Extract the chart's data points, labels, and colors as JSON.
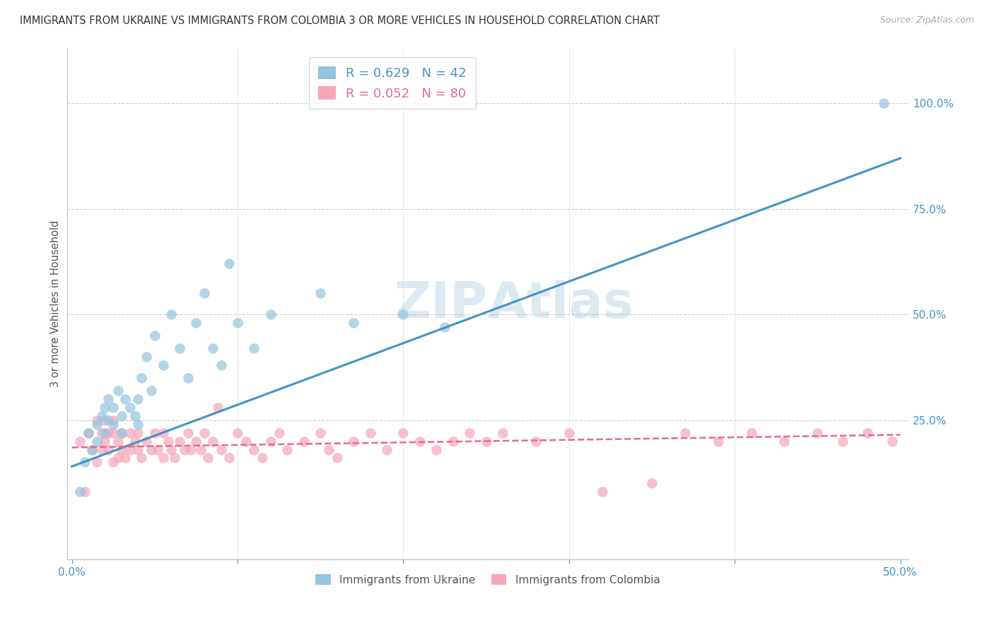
{
  "title": "IMMIGRANTS FROM UKRAINE VS IMMIGRANTS FROM COLOMBIA 3 OR MORE VEHICLES IN HOUSEHOLD CORRELATION CHART",
  "source": "Source: ZipAtlas.com",
  "ylabel": "3 or more Vehicles in Household",
  "ukraine_R": 0.629,
  "ukraine_N": 42,
  "colombia_R": 0.052,
  "colombia_N": 80,
  "ukraine_color": "#92c5de",
  "colombia_color": "#f4a6b8",
  "ukraine_line_color": "#4393c3",
  "colombia_line_color": "#e8698a",
  "xlim_min": -0.003,
  "xlim_max": 0.505,
  "ylim_min": -0.08,
  "ylim_max": 1.13,
  "ukraine_scatter_x": [
    0.005,
    0.008,
    0.01,
    0.012,
    0.015,
    0.015,
    0.018,
    0.02,
    0.02,
    0.022,
    0.022,
    0.025,
    0.025,
    0.028,
    0.03,
    0.03,
    0.032,
    0.035,
    0.038,
    0.04,
    0.04,
    0.042,
    0.045,
    0.048,
    0.05,
    0.055,
    0.06,
    0.065,
    0.07,
    0.075,
    0.08,
    0.085,
    0.09,
    0.095,
    0.1,
    0.11,
    0.12,
    0.15,
    0.17,
    0.2,
    0.225,
    0.49
  ],
  "ukraine_scatter_y": [
    0.08,
    0.15,
    0.22,
    0.18,
    0.2,
    0.24,
    0.26,
    0.22,
    0.28,
    0.25,
    0.3,
    0.24,
    0.28,
    0.32,
    0.22,
    0.26,
    0.3,
    0.28,
    0.26,
    0.24,
    0.3,
    0.35,
    0.4,
    0.32,
    0.45,
    0.38,
    0.5,
    0.42,
    0.35,
    0.48,
    0.55,
    0.42,
    0.38,
    0.62,
    0.48,
    0.42,
    0.5,
    0.55,
    0.48,
    0.5,
    0.47,
    1.0
  ],
  "colombia_scatter_x": [
    0.005,
    0.008,
    0.01,
    0.012,
    0.015,
    0.015,
    0.018,
    0.018,
    0.02,
    0.02,
    0.022,
    0.022,
    0.025,
    0.025,
    0.025,
    0.028,
    0.028,
    0.03,
    0.03,
    0.032,
    0.035,
    0.035,
    0.038,
    0.04,
    0.04,
    0.042,
    0.045,
    0.048,
    0.05,
    0.052,
    0.055,
    0.055,
    0.058,
    0.06,
    0.062,
    0.065,
    0.068,
    0.07,
    0.072,
    0.075,
    0.078,
    0.08,
    0.082,
    0.085,
    0.088,
    0.09,
    0.095,
    0.1,
    0.105,
    0.11,
    0.115,
    0.12,
    0.125,
    0.13,
    0.14,
    0.15,
    0.155,
    0.16,
    0.17,
    0.18,
    0.19,
    0.2,
    0.21,
    0.22,
    0.23,
    0.24,
    0.25,
    0.26,
    0.28,
    0.3,
    0.32,
    0.35,
    0.37,
    0.39,
    0.41,
    0.43,
    0.45,
    0.465,
    0.48,
    0.495
  ],
  "colombia_scatter_y": [
    0.2,
    0.08,
    0.22,
    0.18,
    0.25,
    0.15,
    0.22,
    0.18,
    0.25,
    0.2,
    0.22,
    0.18,
    0.25,
    0.22,
    0.15,
    0.2,
    0.16,
    0.22,
    0.18,
    0.16,
    0.22,
    0.18,
    0.2,
    0.22,
    0.18,
    0.16,
    0.2,
    0.18,
    0.22,
    0.18,
    0.22,
    0.16,
    0.2,
    0.18,
    0.16,
    0.2,
    0.18,
    0.22,
    0.18,
    0.2,
    0.18,
    0.22,
    0.16,
    0.2,
    0.28,
    0.18,
    0.16,
    0.22,
    0.2,
    0.18,
    0.16,
    0.2,
    0.22,
    0.18,
    0.2,
    0.22,
    0.18,
    0.16,
    0.2,
    0.22,
    0.18,
    0.22,
    0.2,
    0.18,
    0.2,
    0.22,
    0.2,
    0.22,
    0.2,
    0.22,
    0.08,
    0.1,
    0.22,
    0.2,
    0.22,
    0.2,
    0.22,
    0.2,
    0.22,
    0.2
  ]
}
